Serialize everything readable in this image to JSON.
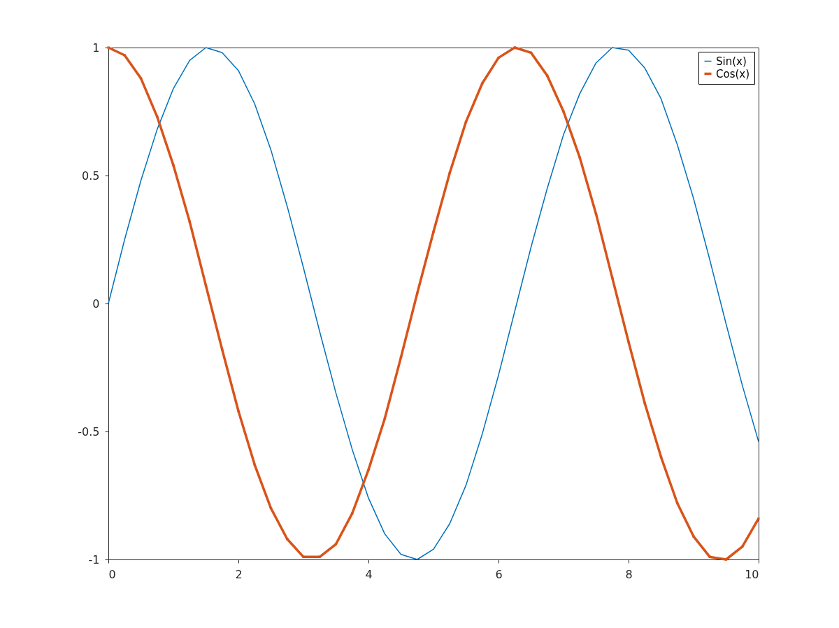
{
  "chart_data": {
    "type": "line",
    "x": [
      0,
      0.25,
      0.5,
      0.75,
      1,
      1.25,
      1.5,
      1.75,
      2,
      2.25,
      2.5,
      2.75,
      3,
      3.25,
      3.5,
      3.75,
      4,
      4.25,
      4.5,
      4.75,
      5,
      5.25,
      5.5,
      5.75,
      6,
      6.25,
      6.5,
      6.75,
      7,
      7.25,
      7.5,
      7.75,
      8,
      8.25,
      8.5,
      8.75,
      9,
      9.25,
      9.5,
      9.75,
      10
    ],
    "series": [
      {
        "name": "Sin(x)",
        "color": "#0072bd",
        "marker": "none",
        "values": [
          0,
          0.25,
          0.48,
          0.68,
          0.84,
          0.95,
          1.0,
          0.98,
          0.91,
          0.78,
          0.6,
          0.38,
          0.14,
          -0.11,
          -0.35,
          -0.57,
          -0.76,
          -0.9,
          -0.98,
          -1.0,
          -0.96,
          -0.86,
          -0.71,
          -0.51,
          -0.28,
          -0.03,
          0.22,
          0.45,
          0.66,
          0.82,
          0.94,
          1.0,
          0.99,
          0.92,
          0.8,
          0.62,
          0.41,
          0.17,
          -0.08,
          -0.32,
          -0.54
        ]
      },
      {
        "name": "Cos(x)",
        "color": "#d95319",
        "marker": "square",
        "values": [
          1,
          0.97,
          0.88,
          0.73,
          0.54,
          0.32,
          0.07,
          -0.18,
          -0.42,
          -0.63,
          -0.8,
          -0.92,
          -0.99,
          -0.99,
          -0.94,
          -0.82,
          -0.65,
          -0.45,
          -0.21,
          0.04,
          0.28,
          0.51,
          0.71,
          0.86,
          0.96,
          1.0,
          0.98,
          0.89,
          0.75,
          0.57,
          0.35,
          0.1,
          -0.15,
          -0.39,
          -0.6,
          -0.78,
          -0.91,
          -0.99,
          -1.0,
          -0.95,
          -0.84
        ]
      }
    ],
    "xlim": [
      0,
      10
    ],
    "xticks": [
      0,
      2,
      4,
      6,
      8,
      10
    ],
    "ylim": [
      -1,
      1
    ],
    "yticks": [
      -1,
      -0.5,
      0,
      0.5,
      1
    ],
    "grid": false,
    "legend": "top right",
    "line_style": "solid"
  }
}
